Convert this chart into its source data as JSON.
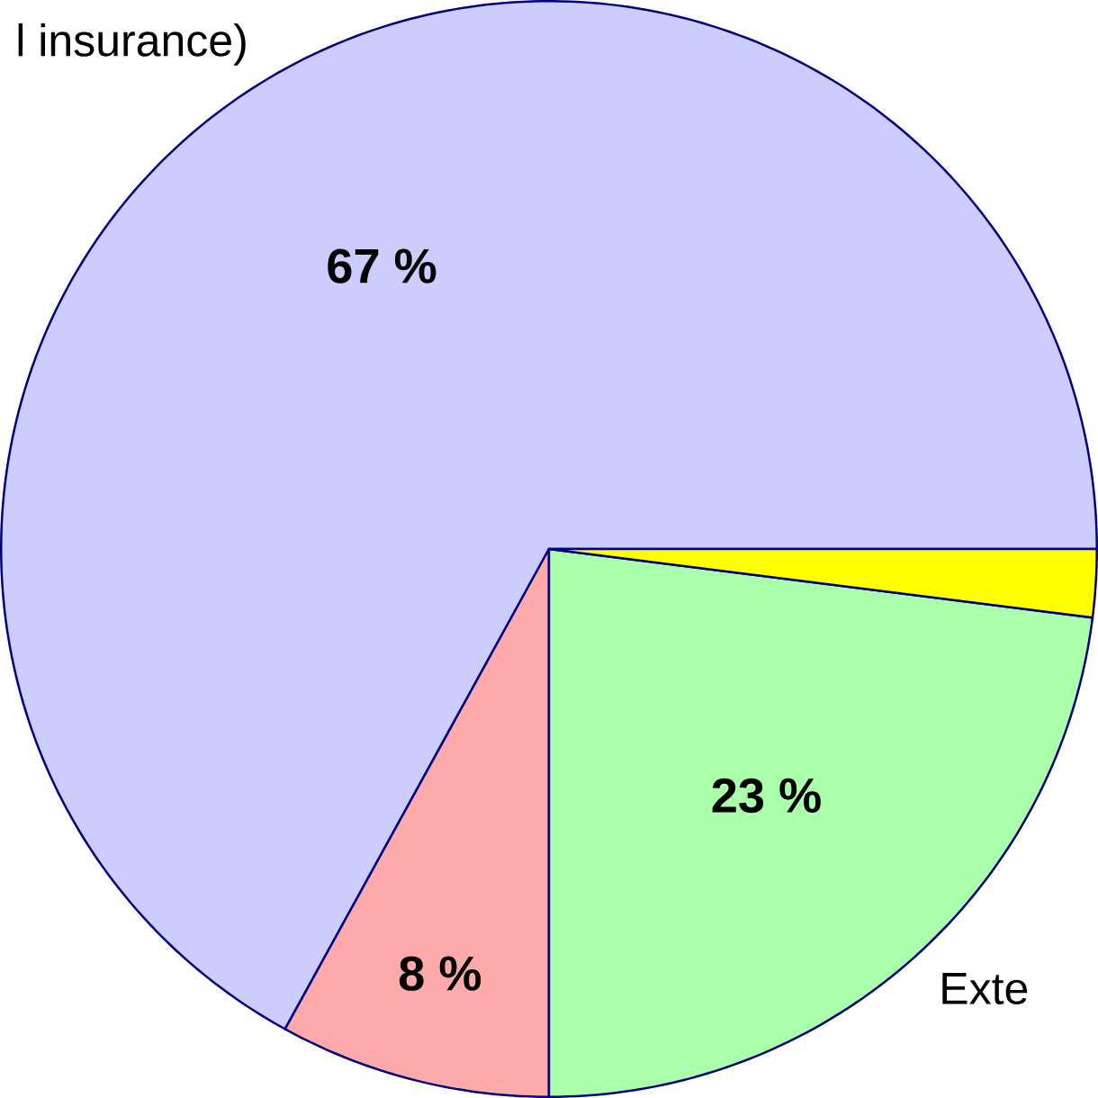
{
  "chart_data": {
    "type": "pie",
    "categories": [
      "l insurance)",
      null,
      "Exte",
      null
    ],
    "values": [
      67,
      8,
      23,
      2
    ],
    "colors": [
      "#ccccff",
      "#ffaaaa",
      "#aaffaa",
      "#ffff00"
    ],
    "value_labels": [
      "67 %",
      "8 %",
      "23 %",
      null
    ]
  }
}
